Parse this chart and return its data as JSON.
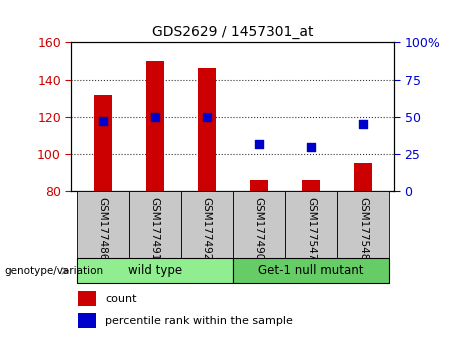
{
  "title": "GDS2629 / 1457301_at",
  "samples": [
    "GSM177486",
    "GSM177491",
    "GSM177492",
    "GSM177490",
    "GSM177547",
    "GSM177548"
  ],
  "bar_values": [
    132,
    150,
    146,
    86,
    86,
    95
  ],
  "dot_values_pct": [
    47,
    50,
    50,
    32,
    30,
    45
  ],
  "bar_color": "#cc0000",
  "dot_color": "#0000cc",
  "ylim_left": [
    80,
    160
  ],
  "ylim_right": [
    0,
    100
  ],
  "yticks_left": [
    80,
    100,
    120,
    140,
    160
  ],
  "yticks_right": [
    0,
    25,
    50,
    75,
    100
  ],
  "yticklabels_right": [
    "0",
    "25",
    "50",
    "75",
    "100%"
  ],
  "groups": [
    {
      "label": "wild type",
      "indices": [
        0,
        2
      ],
      "color": "#90ee90"
    },
    {
      "label": "Get-1 null mutant",
      "indices": [
        3,
        5
      ],
      "color": "#66cc66"
    }
  ],
  "group_label_prefix": "genotype/variation",
  "legend_bar_label": "count",
  "legend_dot_label": "percentile rank within the sample",
  "background_color": "#ffffff",
  "tick_area_color": "#c8c8c8",
  "bar_bottom": 80,
  "bar_width": 0.35
}
